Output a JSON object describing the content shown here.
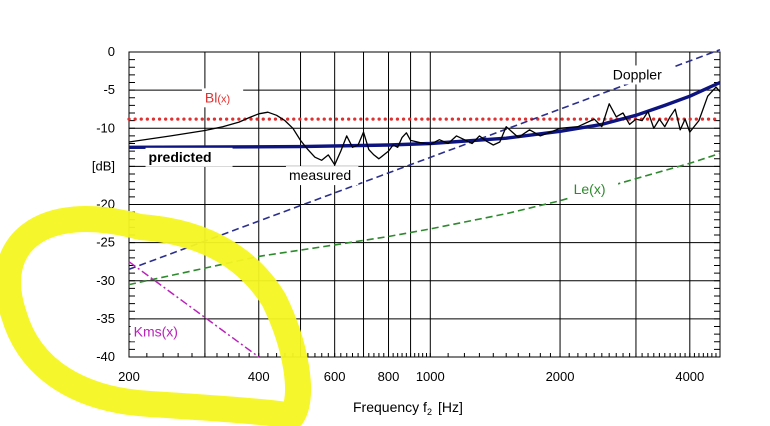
{
  "chart_data": {
    "type": "line",
    "x_scale": "log",
    "xlim": [
      200,
      4700
    ],
    "ylim": [
      -40,
      0
    ],
    "xlabel": "Frequency f",
    "xlabel_sub": "2",
    "xlabel_unit": "[Hz]",
    "ylabel": "[dB]",
    "x_ticks": [
      {
        "value": 200,
        "label": "200"
      },
      {
        "value": 400,
        "label": "400"
      },
      {
        "value": 600,
        "label": "600"
      },
      {
        "value": 800,
        "label": "800"
      },
      {
        "value": 1000,
        "label": "1000"
      },
      {
        "value": 2000,
        "label": "2000"
      },
      {
        "value": 4000,
        "label": "4000"
      }
    ],
    "y_ticks": [
      {
        "value": 0,
        "label": "0"
      },
      {
        "value": -5,
        "label": "-5"
      },
      {
        "value": -10,
        "label": "-10"
      },
      {
        "value": -15,
        "label": "[dB]"
      },
      {
        "value": -20,
        "label": "-20"
      },
      {
        "value": -25,
        "label": "-25"
      },
      {
        "value": -30,
        "label": "-30"
      },
      {
        "value": -35,
        "label": "-35"
      },
      {
        "value": -40,
        "label": "-40"
      }
    ],
    "grid": true,
    "series": [
      {
        "name": "Bl(x)",
        "label_main": "Bl",
        "label_sub": "(x)",
        "color": "#e03030",
        "style": "dotted",
        "label_x": 300,
        "label_y": -6.6,
        "x": [
          200,
          4700
        ],
        "y": [
          -8.8,
          -8.8
        ]
      },
      {
        "name": "Doppler",
        "label_main": "Doppler",
        "label_sub": "",
        "color": "#2a2f8c",
        "style": "dashed",
        "label_x": 2650,
        "label_y": -3.6,
        "x": [
          200,
          4700
        ],
        "y": [
          -28.5,
          0.3
        ]
      },
      {
        "name": "Le(x)",
        "label_main": "Le(x)",
        "label_sub": "",
        "color": "#2d8a2d",
        "style": "dashed",
        "label_x": 2150,
        "label_y": -18.6,
        "x": [
          200,
          400,
          600,
          800,
          1000,
          1500,
          2000,
          3000,
          4000,
          4700
        ],
        "y": [
          -30.5,
          -26.8,
          -25.3,
          -24.2,
          -23.2,
          -21.2,
          -19.5,
          -16.6,
          -14.6,
          -13.3
        ]
      },
      {
        "name": "Kms(x)",
        "label_main": "Kms(x)",
        "label_sub": "",
        "color": "#bb22bb",
        "style": "dashdot",
        "label_x": 205,
        "label_y": -37.3,
        "x": [
          200,
          400
        ],
        "y": [
          -27.5,
          -40
        ]
      },
      {
        "name": "predicted",
        "label_main": "predicted",
        "label_sub": "",
        "color": "#0d1480",
        "style": "thick",
        "label_x": 222,
        "label_y": -14.4,
        "x": [
          200,
          500,
          800,
          1000,
          1500,
          2000,
          2500,
          3000,
          3500,
          4000,
          4700
        ],
        "y": [
          -12.5,
          -12.4,
          -12.2,
          -12.0,
          -11.3,
          -10.4,
          -9.5,
          -8.3,
          -7.0,
          -5.8,
          -4.0
        ]
      },
      {
        "name": "measured",
        "label_main": "measured",
        "label_sub": "",
        "color": "#000000",
        "style": "thin",
        "label_x": 470,
        "label_y": -16.8,
        "x": [
          200,
          250,
          300,
          330,
          360,
          380,
          400,
          420,
          440,
          460,
          480,
          500,
          520,
          540,
          560,
          580,
          600,
          620,
          640,
          660,
          680,
          700,
          720,
          740,
          760,
          780,
          800,
          820,
          840,
          860,
          880,
          900,
          950,
          1000,
          1050,
          1100,
          1150,
          1200,
          1250,
          1300,
          1350,
          1400,
          1450,
          1500,
          1550,
          1600,
          1700,
          1800,
          1900,
          2000,
          2200,
          2400,
          2500,
          2600,
          2700,
          2800,
          2900,
          3000,
          3100,
          3200,
          3300,
          3400,
          3500,
          3600,
          3700,
          3800,
          3900,
          4000,
          4200,
          4400,
          4600,
          4700
        ],
        "y": [
          -11.8,
          -11.0,
          -10.3,
          -9.8,
          -9.2,
          -8.6,
          -8.1,
          -7.9,
          -8.3,
          -9.0,
          -10.0,
          -11.6,
          -12.8,
          -13.8,
          -14.2,
          -13.5,
          -14.8,
          -13.0,
          -11.0,
          -12.5,
          -12.2,
          -10.5,
          -12.8,
          -13.5,
          -14.0,
          -13.5,
          -13.0,
          -12.2,
          -12.5,
          -11.2,
          -10.6,
          -11.6,
          -11.9,
          -12.1,
          -11.5,
          -12.0,
          -11.0,
          -11.5,
          -12.0,
          -11.0,
          -11.7,
          -12.2,
          -11.8,
          -9.8,
          -10.5,
          -11.2,
          -10.2,
          -11.0,
          -10.5,
          -10.0,
          -9.8,
          -8.8,
          -9.8,
          -6.8,
          -8.5,
          -8.0,
          -9.5,
          -8.8,
          -9.0,
          -7.8,
          -10.0,
          -8.8,
          -9.8,
          -8.5,
          -7.5,
          -10.2,
          -8.8,
          -10.5,
          -9.0,
          -5.8,
          -4.6,
          -5.2
        ]
      }
    ]
  }
}
